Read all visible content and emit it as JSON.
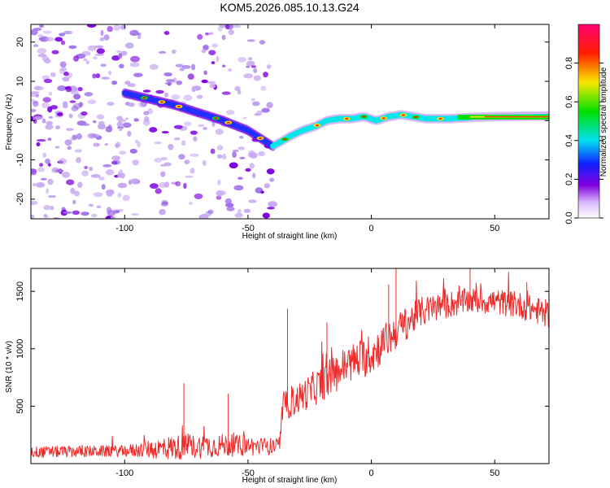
{
  "figure_title": "KOM5.2026.085.10.13.G24",
  "colors": {
    "background": "#ffffff",
    "axis": "#000000",
    "snr_line": "#ee2a2a",
    "cmap": [
      "#ffffff",
      "#c8a8f0",
      "#7b00e0",
      "#2030ff",
      "#00e8e8",
      "#00e000",
      "#f0e000",
      "#ff1010",
      "#ff0080"
    ]
  },
  "chart_data": [
    {
      "type": "heatmap",
      "title": "",
      "xlabel": "Height of straight line (km)",
      "ylabel": "Frequency (Hz)",
      "xlim": [
        -138,
        72
      ],
      "ylim": [
        -25,
        24.5
      ],
      "xticks": [
        -100,
        -50,
        0,
        50
      ],
      "yticks": [
        -20,
        -10,
        0,
        10,
        20
      ],
      "ridge": {
        "x": [
          -100,
          -90,
          -80,
          -70,
          -60,
          -50,
          -45,
          -40,
          -37,
          -33,
          -28,
          -23,
          -18,
          -13,
          -8,
          -3,
          2,
          7,
          12,
          17,
          22,
          27,
          32,
          40,
          50,
          60,
          72
        ],
        "freq_hz": [
          7,
          5.5,
          4,
          2,
          0,
          -2.5,
          -4.5,
          -6.5,
          -5.5,
          -4,
          -2.5,
          -1.5,
          0,
          0.5,
          0.5,
          1,
          0,
          1,
          1.5,
          1,
          0.5,
          0.5,
          0.5,
          0.8,
          1,
          1.1,
          1.2
        ]
      },
      "noise_band": {
        "x": [
          -138,
          -40
        ],
        "freq_hz": [
          -25,
          24.5
        ]
      },
      "colorbar": {
        "label": "Normalized spectral amplitude",
        "range": [
          0,
          1
        ],
        "ticks": [
          "0.0",
          "0.2",
          "0.4",
          "0.6",
          "0.8"
        ]
      }
    },
    {
      "type": "line",
      "title": "",
      "xlabel": "Height of straight line (km)",
      "ylabel": "SNR (10 * v/v)",
      "xlim": [
        -138,
        72
      ],
      "ylim": [
        0,
        1700
      ],
      "xticks": [
        -100,
        -50,
        0,
        50
      ],
      "yticks": [
        500,
        1000,
        1500
      ],
      "series": [
        {
          "name": "SNR",
          "trend_x": [
            -138,
            -100,
            -80,
            -60,
            -45,
            -37,
            -36,
            -30,
            -20,
            -10,
            0,
            10,
            20,
            30,
            40,
            50,
            60,
            72
          ],
          "trend_y": [
            100,
            110,
            140,
            160,
            150,
            150,
            480,
            560,
            700,
            860,
            950,
            1150,
            1320,
            1380,
            1420,
            1410,
            1380,
            1300
          ],
          "noise_x": [
            -138,
            -100,
            -80,
            -60,
            -45,
            -37,
            -36,
            -20,
            0,
            20,
            40,
            72
          ],
          "noise_y": [
            50,
            50,
            110,
            100,
            80,
            70,
            120,
            160,
            180,
            130,
            110,
            120
          ],
          "spikes": [
            {
              "x": -76,
              "y": 700
            },
            {
              "x": -58,
              "y": 610
            },
            {
              "x": -34,
              "y": 1350
            },
            {
              "x": -18,
              "y": 1230
            },
            {
              "x": 7,
              "y": 1560
            },
            {
              "x": 10,
              "y": 1700
            },
            {
              "x": 40,
              "y": 1700
            },
            {
              "x": 63,
              "y": 1580
            }
          ]
        }
      ]
    }
  ]
}
